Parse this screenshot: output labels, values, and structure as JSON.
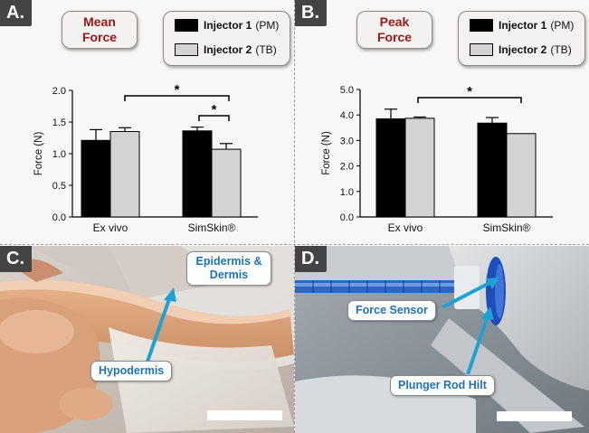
{
  "panels": {
    "a": {
      "letter": "A.",
      "title_line1": "Mean",
      "title_line2": "Force"
    },
    "b": {
      "letter": "B.",
      "title_line1": "Peak",
      "title_line2": "Force"
    },
    "c": {
      "letter": "C.",
      "callout_top_line1": "Epidermis &",
      "callout_top_line2": "Dermis",
      "callout_bottom": "Hypodermis"
    },
    "d": {
      "letter": "D.",
      "callout_top": "Force Sensor",
      "callout_bottom": "Plunger Rod Hilt"
    }
  },
  "legend": [
    {
      "name": "Injector 1",
      "suffix": "(PM)",
      "color": "#000000"
    },
    {
      "name": "Injector 2",
      "suffix": "(TB)",
      "color": "#d3d3d3"
    }
  ],
  "chart_data": [
    {
      "type": "bar",
      "categories": [
        "Ex vivo",
        "SimSkin®"
      ],
      "ylabel": "Force (N)",
      "ylim": [
        0,
        2.0
      ],
      "yticks": [
        "0.0",
        "0.5",
        "1.0",
        "1.5",
        "2.0"
      ],
      "series": [
        {
          "name": "Injector 1 (PM)",
          "values": [
            1.21,
            1.36
          ],
          "errors": [
            0.17,
            0.06
          ]
        },
        {
          "name": "Injector 2 (TB)",
          "values": [
            1.35,
            1.07
          ],
          "errors": [
            0.06,
            0.09
          ]
        }
      ],
      "annotations": [
        "*",
        "*"
      ]
    },
    {
      "type": "bar",
      "categories": [
        "Ex vivo",
        "SimSkin®"
      ],
      "ylabel": "Force (N)",
      "ylim": [
        0,
        5.0
      ],
      "yticks": [
        "0.0",
        "1.0",
        "2.0",
        "3.0",
        "4.0",
        "5.0"
      ],
      "series": [
        {
          "name": "Injector 1 (PM)",
          "values": [
            3.85,
            3.68
          ],
          "errors": [
            0.38,
            0.22
          ]
        },
        {
          "name": "Injector 2 (TB)",
          "values": [
            3.87,
            3.27
          ],
          "errors": [
            0.05,
            0.0
          ]
        }
      ],
      "annotations": [
        "*"
      ]
    }
  ]
}
